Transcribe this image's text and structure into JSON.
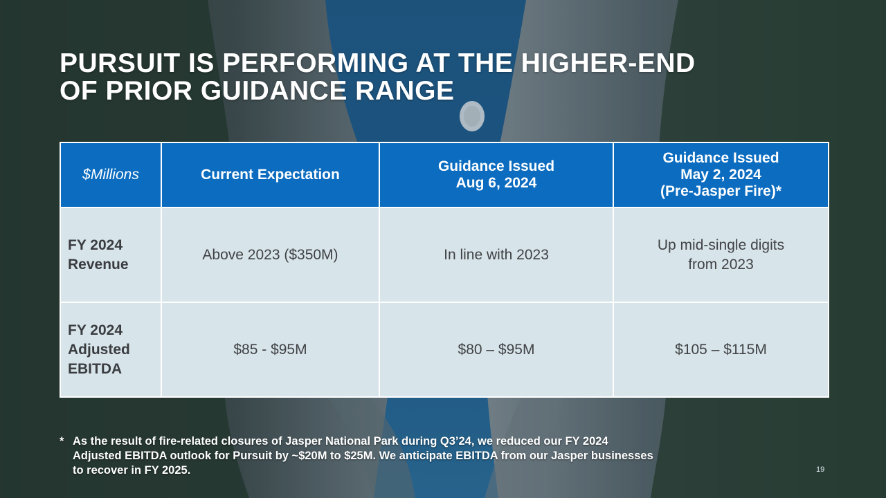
{
  "slide": {
    "title_line1": "PURSUIT IS PERFORMING AT THE HIGHER-END",
    "title_line2": "OF PRIOR GUIDANCE RANGE",
    "page_number": "19"
  },
  "table": {
    "headers": [
      "$Millions",
      "Current Expectation",
      "Guidance Issued\nAug 6, 2024",
      "Guidance Issued\nMay 2, 2024\n(Pre-Jasper Fire)*"
    ],
    "rows": [
      {
        "label": "FY 2024\nRevenue",
        "cells": [
          "Above 2023 ($350M)",
          "In line with 2023",
          "Up mid-single digits\nfrom 2023"
        ]
      },
      {
        "label": "FY 2024\nAdjusted\nEBITDA",
        "cells": [
          "$85 - $95M",
          "$80 – $95M",
          "$105 – $115M"
        ]
      }
    ]
  },
  "footnote": {
    "marker": "*",
    "text": "As the result of fire-related closures of Jasper National Park during Q3’24, we reduced our FY 2024\nAdjusted EBITDA outlook for Pursuit by ~$20M to $25M.  We anticipate EBITDA from our Jasper businesses\nto recover in FY 2025."
  },
  "colors": {
    "header_blue": "#0b6cc0",
    "body_cell": "#d7e4ea",
    "water": "#1f5f8a",
    "forest": "#2b3f33"
  }
}
